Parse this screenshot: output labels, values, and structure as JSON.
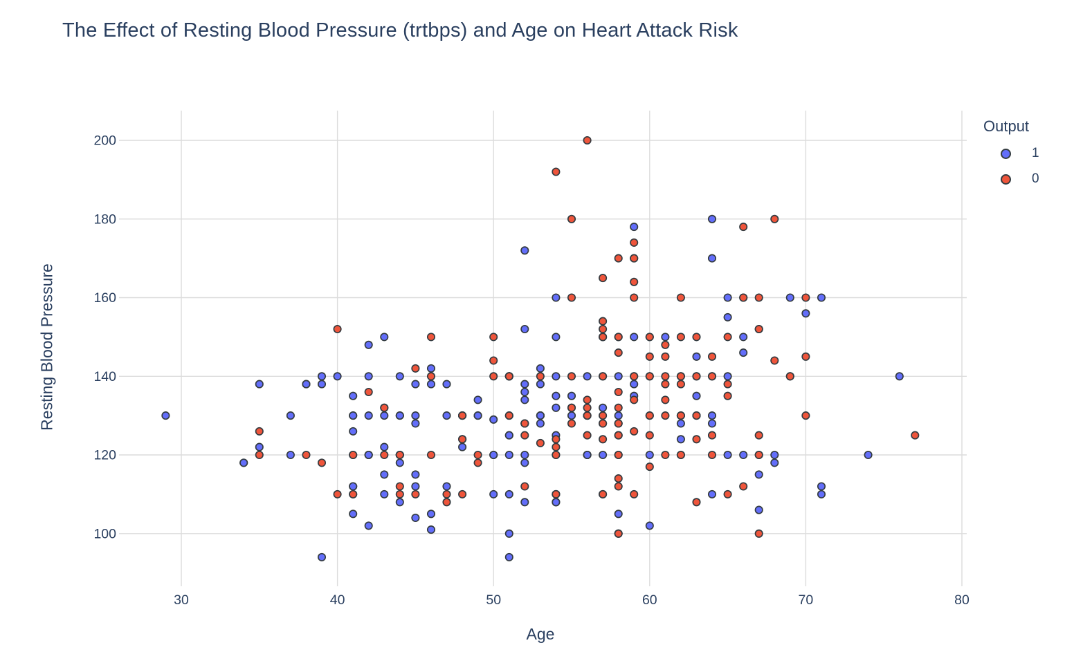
{
  "title": "The Effect of Resting Blood Pressure (trtbps) and Age on Heart Attack Risk",
  "colors": {
    "text": "#2a3f5f",
    "grid": "#dcdcdc",
    "background": "#ffffff",
    "output1_blue": "#636efa",
    "output0_red": "#ef553b",
    "marker_edge": "#333b40"
  },
  "legend": {
    "title": "Output",
    "entries": [
      "1",
      "0"
    ]
  },
  "chart_data": {
    "type": "scatter",
    "title": "The Effect of Resting Blood Pressure (trtbps) and Age on Heart Attack Risk",
    "xlabel": "Age",
    "ylabel": "Resting Blood Pressure",
    "x_ticks": [
      30,
      40,
      50,
      60,
      70,
      80
    ],
    "y_ticks": [
      100,
      120,
      140,
      160,
      180,
      200
    ],
    "xlim": [
      26.5,
      80.5
    ],
    "ylim": [
      91.5,
      207.5
    ],
    "grid": true,
    "legend_title": "Output",
    "legend_position": "top-right-outside",
    "series": [
      {
        "name": "1",
        "color": "#636efa",
        "edge_color": "#333b40",
        "points": [
          [
            63,
            145
          ],
          [
            37,
            130
          ],
          [
            41,
            130
          ],
          [
            56,
            120
          ],
          [
            57,
            120
          ],
          [
            57,
            140
          ],
          [
            56,
            140
          ],
          [
            44,
            120
          ],
          [
            52,
            172
          ],
          [
            57,
            150
          ],
          [
            54,
            140
          ],
          [
            48,
            130
          ],
          [
            49,
            130
          ],
          [
            64,
            110
          ],
          [
            58,
            150
          ],
          [
            50,
            120
          ],
          [
            58,
            120
          ],
          [
            66,
            150
          ],
          [
            43,
            150
          ],
          [
            69,
            140
          ],
          [
            59,
            135
          ],
          [
            44,
            130
          ],
          [
            42,
            140
          ],
          [
            61,
            150
          ],
          [
            40,
            140
          ],
          [
            71,
            160
          ],
          [
            59,
            150
          ],
          [
            51,
            110
          ],
          [
            65,
            140
          ],
          [
            53,
            130
          ],
          [
            41,
            105
          ],
          [
            65,
            120
          ],
          [
            44,
            130
          ],
          [
            54,
            125
          ],
          [
            51,
            125
          ],
          [
            46,
            142
          ],
          [
            54,
            135
          ],
          [
            54,
            150
          ],
          [
            65,
            155
          ],
          [
            65,
            160
          ],
          [
            51,
            140
          ],
          [
            48,
            130
          ],
          [
            45,
            104
          ],
          [
            53,
            130
          ],
          [
            39,
            140
          ],
          [
            52,
            120
          ],
          [
            44,
            140
          ],
          [
            47,
            138
          ],
          [
            53,
            128
          ],
          [
            53,
            138
          ],
          [
            51,
            130
          ],
          [
            66,
            120
          ],
          [
            62,
            130
          ],
          [
            44,
            108
          ],
          [
            63,
            135
          ],
          [
            52,
            134
          ],
          [
            48,
            122
          ],
          [
            45,
            115
          ],
          [
            34,
            118
          ],
          [
            57,
            128
          ],
          [
            71,
            110
          ],
          [
            54,
            108
          ],
          [
            52,
            118
          ],
          [
            41,
            135
          ],
          [
            58,
            140
          ],
          [
            35,
            138
          ],
          [
            51,
            100
          ],
          [
            45,
            130
          ],
          [
            44,
            120
          ],
          [
            62,
            124
          ],
          [
            54,
            120
          ],
          [
            51,
            94
          ],
          [
            29,
            130
          ],
          [
            51,
            140
          ],
          [
            43,
            122
          ],
          [
            55,
            135
          ],
          [
            51,
            125
          ],
          [
            59,
            140
          ],
          [
            52,
            128
          ],
          [
            58,
            105
          ],
          [
            41,
            112
          ],
          [
            45,
            128
          ],
          [
            60,
            102
          ],
          [
            52,
            152
          ],
          [
            42,
            102
          ],
          [
            67,
            115
          ],
          [
            68,
            118
          ],
          [
            46,
            101
          ],
          [
            54,
            110
          ],
          [
            58,
            100
          ],
          [
            48,
            124
          ],
          [
            57,
            132
          ],
          [
            52,
            138
          ],
          [
            54,
            132
          ],
          [
            45,
            112
          ],
          [
            53,
            142
          ],
          [
            62,
            140
          ],
          [
            52,
            108
          ],
          [
            43,
            130
          ],
          [
            53,
            130
          ],
          [
            42,
            148
          ],
          [
            59,
            178
          ],
          [
            63,
            140
          ],
          [
            42,
            120
          ],
          [
            50,
            129
          ],
          [
            68,
            120
          ],
          [
            69,
            160
          ],
          [
            45,
            138
          ],
          [
            50,
            120
          ],
          [
            50,
            110
          ],
          [
            64,
            180
          ],
          [
            57,
            150
          ],
          [
            64,
            140
          ],
          [
            43,
            110
          ],
          [
            55,
            130
          ],
          [
            37,
            120
          ],
          [
            41,
            130
          ],
          [
            56,
            120
          ],
          [
            46,
            105
          ],
          [
            46,
            138
          ],
          [
            64,
            130
          ],
          [
            59,
            138
          ],
          [
            41,
            112
          ],
          [
            54,
            108
          ],
          [
            39,
            94
          ],
          [
            34,
            118
          ],
          [
            47,
            112
          ],
          [
            67,
            152
          ],
          [
            52,
            136
          ],
          [
            74,
            120
          ],
          [
            54,
            160
          ],
          [
            49,
            134
          ],
          [
            42,
            120
          ],
          [
            41,
            110
          ],
          [
            41,
            126
          ],
          [
            49,
            130
          ],
          [
            60,
            120
          ],
          [
            62,
            128
          ],
          [
            57,
            110
          ],
          [
            64,
            128
          ],
          [
            51,
            120
          ],
          [
            43,
            115
          ],
          [
            42,
            120
          ],
          [
            67,
            106
          ],
          [
            76,
            140
          ],
          [
            70,
            156
          ],
          [
            44,
            118
          ],
          [
            60,
            150
          ],
          [
            44,
            120
          ],
          [
            42,
            130
          ],
          [
            66,
            160
          ],
          [
            71,
            112
          ],
          [
            64,
            170
          ],
          [
            66,
            146
          ],
          [
            39,
            138
          ],
          [
            58,
            130
          ],
          [
            47,
            130
          ],
          [
            35,
            122
          ],
          [
            58,
            125
          ],
          [
            56,
            130
          ],
          [
            56,
            120
          ],
          [
            55,
            132
          ],
          [
            41,
            120
          ],
          [
            38,
            138
          ],
          [
            38,
            138
          ]
        ]
      },
      {
        "name": "0",
        "color": "#ef553b",
        "edge_color": "#333b40",
        "points": [
          [
            67,
            160
          ],
          [
            67,
            120
          ],
          [
            62,
            140
          ],
          [
            63,
            130
          ],
          [
            53,
            140
          ],
          [
            56,
            130
          ],
          [
            48,
            110
          ],
          [
            58,
            120
          ],
          [
            58,
            132
          ],
          [
            60,
            130
          ],
          [
            40,
            110
          ],
          [
            60,
            117
          ],
          [
            64,
            140
          ],
          [
            43,
            120
          ],
          [
            57,
            150
          ],
          [
            55,
            132
          ],
          [
            65,
            150
          ],
          [
            61,
            130
          ],
          [
            58,
            112
          ],
          [
            50,
            150
          ],
          [
            44,
            112
          ],
          [
            60,
            130
          ],
          [
            54,
            124
          ],
          [
            50,
            140
          ],
          [
            41,
            110
          ],
          [
            51,
            130
          ],
          [
            58,
            128
          ],
          [
            54,
            120
          ],
          [
            60,
            145
          ],
          [
            60,
            140
          ],
          [
            59,
            170
          ],
          [
            46,
            150
          ],
          [
            67,
            125
          ],
          [
            62,
            120
          ],
          [
            65,
            110
          ],
          [
            44,
            110
          ],
          [
            60,
            125
          ],
          [
            58,
            150
          ],
          [
            68,
            180
          ],
          [
            62,
            160
          ],
          [
            52,
            128
          ],
          [
            59,
            110
          ],
          [
            60,
            150
          ],
          [
            49,
            120
          ],
          [
            59,
            140
          ],
          [
            57,
            128
          ],
          [
            61,
            120
          ],
          [
            39,
            118
          ],
          [
            61,
            145
          ],
          [
            56,
            125
          ],
          [
            43,
            132
          ],
          [
            62,
            130
          ],
          [
            63,
            130
          ],
          [
            65,
            135
          ],
          [
            48,
            130
          ],
          [
            63,
            150
          ],
          [
            55,
            140
          ],
          [
            65,
            138
          ],
          [
            56,
            200
          ],
          [
            54,
            110
          ],
          [
            70,
            145
          ],
          [
            62,
            120
          ],
          [
            35,
            120
          ],
          [
            59,
            170
          ],
          [
            64,
            125
          ],
          [
            47,
            108
          ],
          [
            57,
            165
          ],
          [
            55,
            160
          ],
          [
            64,
            120
          ],
          [
            70,
            130
          ],
          [
            51,
            140
          ],
          [
            58,
            125
          ],
          [
            60,
            140
          ],
          [
            77,
            125
          ],
          [
            35,
            126
          ],
          [
            70,
            160
          ],
          [
            59,
            174
          ],
          [
            64,
            145
          ],
          [
            57,
            152
          ],
          [
            56,
            132
          ],
          [
            48,
            124
          ],
          [
            56,
            134
          ],
          [
            66,
            160
          ],
          [
            54,
            192
          ],
          [
            69,
            140
          ],
          [
            51,
            140
          ],
          [
            43,
            132
          ],
          [
            62,
            138
          ],
          [
            67,
            100
          ],
          [
            59,
            160
          ],
          [
            45,
            142
          ],
          [
            58,
            128
          ],
          [
            50,
            144
          ],
          [
            62,
            150
          ],
          [
            38,
            120
          ],
          [
            66,
            178
          ],
          [
            52,
            112
          ],
          [
            53,
            123
          ],
          [
            63,
            108
          ],
          [
            54,
            110
          ],
          [
            66,
            112
          ],
          [
            55,
            180
          ],
          [
            49,
            118
          ],
          [
            54,
            122
          ],
          [
            56,
            130
          ],
          [
            46,
            120
          ],
          [
            61,
            134
          ],
          [
            67,
            120
          ],
          [
            58,
            100
          ],
          [
            47,
            110
          ],
          [
            52,
            125
          ],
          [
            58,
            146
          ],
          [
            57,
            124
          ],
          [
            58,
            136
          ],
          [
            61,
            138
          ],
          [
            42,
            136
          ],
          [
            52,
            128
          ],
          [
            59,
            126
          ],
          [
            40,
            152
          ],
          [
            61,
            140
          ],
          [
            46,
            140
          ],
          [
            59,
            134
          ],
          [
            57,
            154
          ],
          [
            57,
            110
          ],
          [
            55,
            128
          ],
          [
            61,
            148
          ],
          [
            58,
            114
          ],
          [
            58,
            170
          ],
          [
            67,
            152
          ],
          [
            44,
            120
          ],
          [
            63,
            140
          ],
          [
            63,
            124
          ],
          [
            41,
            120
          ],
          [
            59,
            164
          ],
          [
            57,
            140
          ],
          [
            45,
            110
          ],
          [
            68,
            144
          ],
          [
            57,
            130
          ]
        ]
      }
    ]
  }
}
